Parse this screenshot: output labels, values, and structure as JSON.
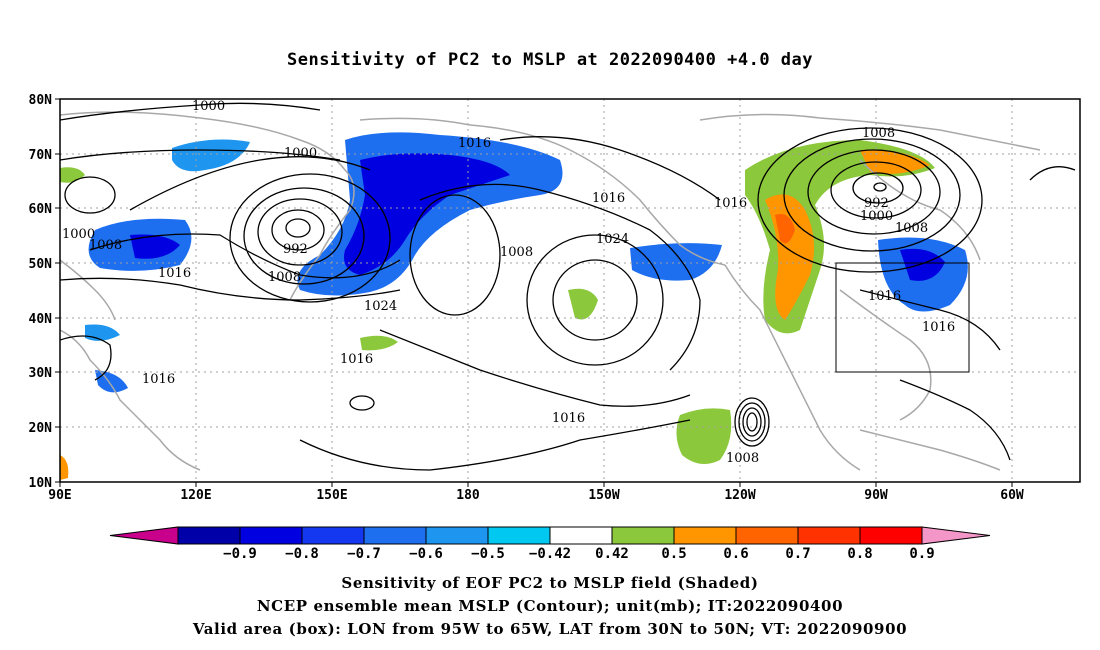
{
  "title": "Sensitivity of PC2 to MSLP at 2022090400 +4.0 day",
  "axes": {
    "lat_labels": [
      "80N",
      "70N",
      "60N",
      "50N",
      "40N",
      "30N",
      "20N",
      "10N"
    ],
    "lon_labels": [
      "90E",
      "120E",
      "150E",
      "180",
      "150W",
      "120W",
      "90W",
      "60W"
    ]
  },
  "contour_labels": [
    "1000",
    "1000",
    "1000",
    "1008",
    "992",
    "1008",
    "1016",
    "1016",
    "1024",
    "1016",
    "1016",
    "1008",
    "1016",
    "1024",
    "1016",
    "1008",
    "1016",
    "1008",
    "992",
    "1000",
    "1008",
    "1016",
    "1016",
    "1016"
  ],
  "colorbar": {
    "labels": [
      "-0.9",
      "-0.8",
      "-0.7",
      "-0.6",
      "-0.5",
      "-0.42",
      "0.42",
      "0.5",
      "0.6",
      "0.7",
      "0.8",
      "0.9"
    ],
    "colors": [
      "#c8008c",
      "#0000a8",
      "#0000e0",
      "#1438f0",
      "#1e6ef0",
      "#1e96f0",
      "#00c8f0",
      "#ffffff",
      "#8cc83c",
      "#ff9600",
      "#ff6400",
      "#ff3200",
      "#ff0000",
      "#f596c8"
    ]
  },
  "captions": {
    "line1": "Sensitivity of EOF PC2 to MSLP field (Shaded)",
    "line2": "NCEP ensemble mean MSLP (Contour); unit(mb); IT:2022090400",
    "line3": "Valid area (box): LON from 95W to 65W, LAT from 30N to 50N; VT: 2022090900"
  }
}
